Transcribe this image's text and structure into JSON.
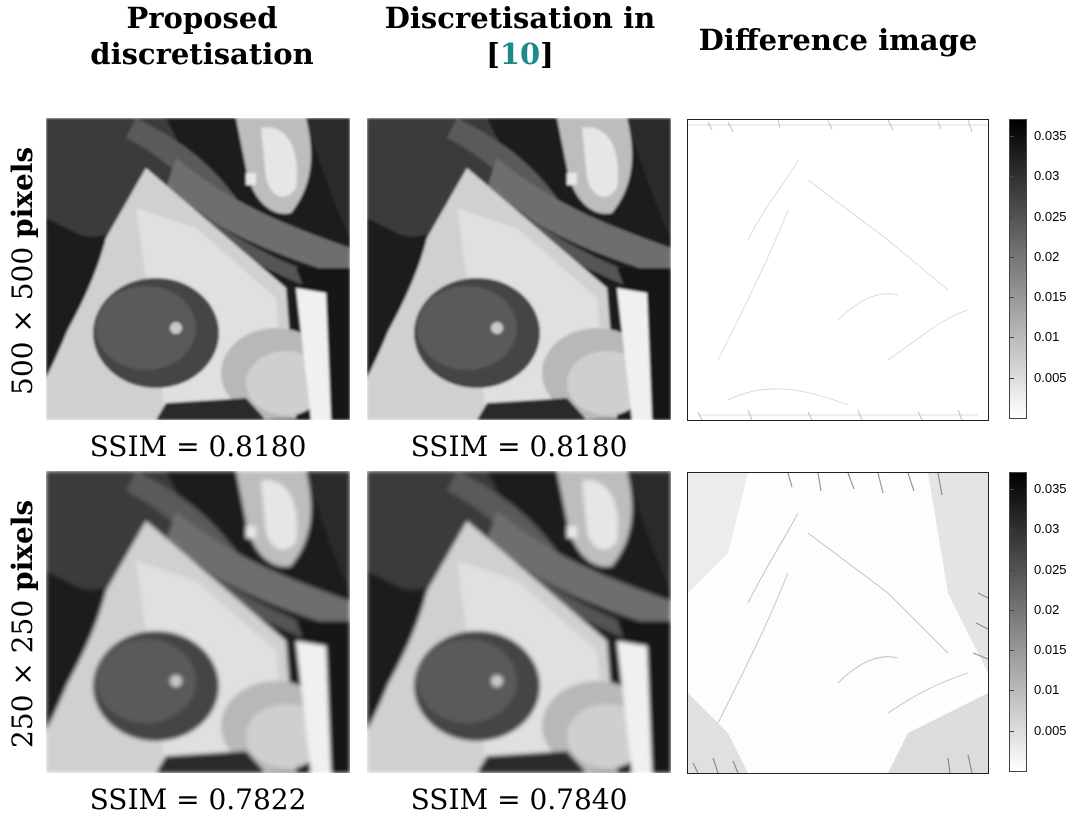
{
  "headers": {
    "col1_line1": "Proposed",
    "col1_line2": "discretisation",
    "col2_line1": "Discretisation in",
    "col2_bracket_open": "[",
    "col2_ref": "10",
    "col2_bracket_close": "]",
    "col3": "Difference image"
  },
  "rows": [
    {
      "label_size": "500 × 500 ",
      "label_unit": "pixels",
      "ssim_proposed": "SSIM = 0.8180",
      "ssim_reference": "SSIM = 0.8180"
    },
    {
      "label_size": "250 × 250 ",
      "label_unit": "pixels",
      "ssim_proposed": "SSIM = 0.7822",
      "ssim_reference": "SSIM = 0.7840"
    }
  ],
  "colorbar": {
    "ticks": [
      "0.035",
      "0.03",
      "0.025",
      "0.02",
      "0.015",
      "0.01",
      "0.005"
    ],
    "max": 0.037,
    "min": 0.0,
    "colormap": "gray-reversed"
  },
  "colors": {
    "cite": "#1a8a8a"
  }
}
